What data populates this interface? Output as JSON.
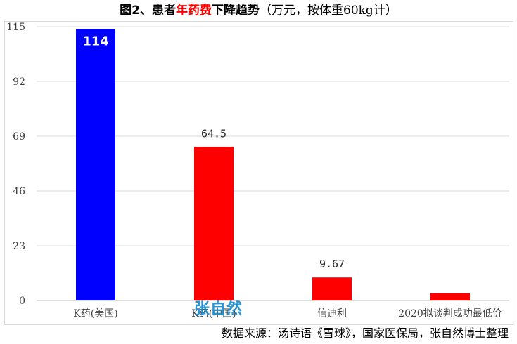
{
  "title": {
    "part1": "图2、患者",
    "part2": "年药费",
    "part3": "下降趋势",
    "part4": "（万元，按体重60kg计）"
  },
  "colors": {
    "blue": "#0000ff",
    "red": "#ff0000",
    "grid": "#d9d9d9"
  },
  "watermark": "张自然",
  "source": "数据来源：汤诗语《雪球》，国家医保局，张自然博士整理",
  "chart_data": {
    "type": "bar",
    "categories": [
      "K药(美国)",
      "K药(中国)",
      "信迪利",
      "2020拟谈判成功最低价"
    ],
    "values": [
      114,
      64.5,
      9.67,
      3
    ],
    "data_labels": [
      "114",
      "64.5",
      "9.67",
      ""
    ],
    "bar_colors": [
      "#0000ff",
      "#ff0000",
      "#ff0000",
      "#ff0000"
    ],
    "yticks": [
      "0",
      "23",
      "46",
      "69",
      "92",
      "115"
    ],
    "ylim": [
      0,
      115
    ],
    "grid": true,
    "legend": false
  }
}
